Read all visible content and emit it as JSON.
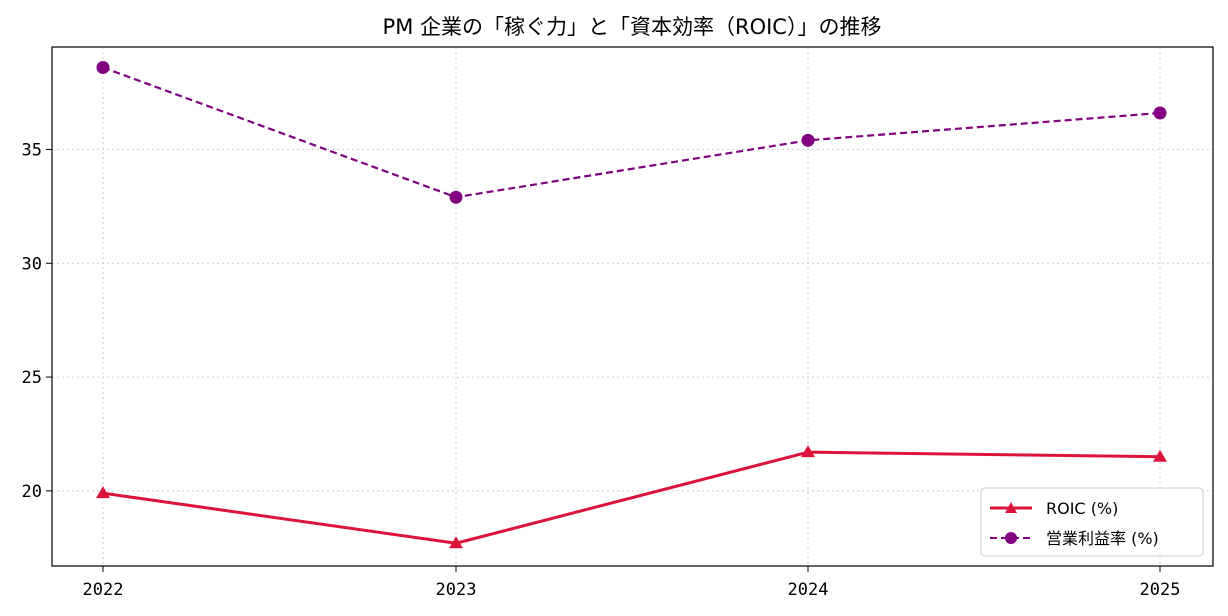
{
  "chart_data": {
    "type": "line",
    "title": "PM 企業の「稼ぐ力」と「資本効率（ROIC）」の推移",
    "xlabel": "",
    "ylabel": "",
    "x": [
      "2022",
      "2023",
      "2024",
      "2025"
    ],
    "ylim": [
      16.7,
      39.5
    ],
    "yticks": [
      20,
      25,
      30,
      35
    ],
    "grid": true,
    "legend_position": "lower-right",
    "series": [
      {
        "name": "ROIC (%)",
        "values": [
          19.9,
          17.7,
          21.7,
          21.5
        ],
        "color": "#dc143c",
        "marker": "triangle",
        "line_style": "solid"
      },
      {
        "name": "営業利益率 (%)",
        "values": [
          38.6,
          32.9,
          35.4,
          36.6
        ],
        "color": "#800080",
        "marker": "circle",
        "line_style": "dashed"
      }
    ]
  }
}
